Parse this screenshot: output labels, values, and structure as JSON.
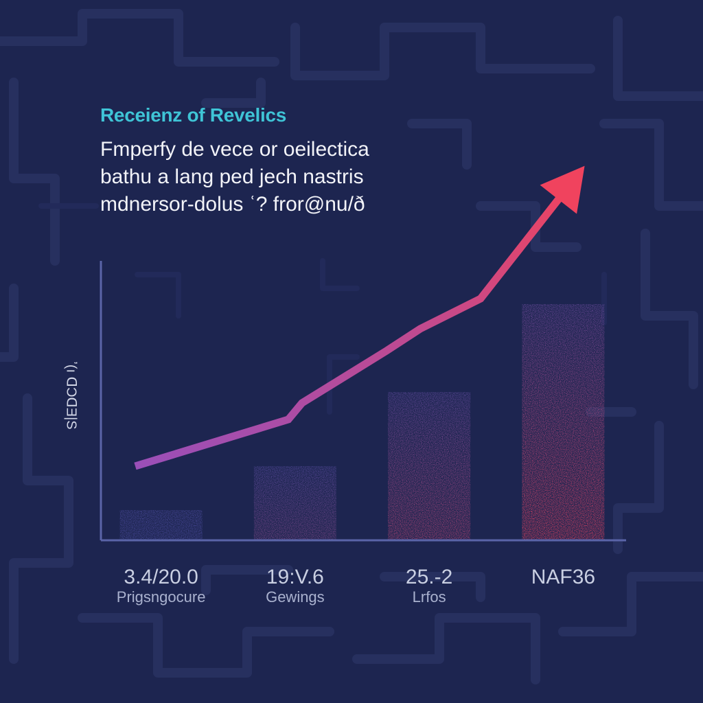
{
  "chart_data": {
    "type": "bar",
    "title": "Receienz of Revelics",
    "subtitle_lines": [
      "Fmperfy de vece or oeilectica",
      "bathu a lang ped jech nastris",
      "mdnersor-dolus ʿ? fror@nu/ð"
    ],
    "ylabel": "ʼ(ı ᗡƆᗡƎ|S",
    "categories": [
      {
        "value_label": "3.4/20.0",
        "label": "Prigsngocure"
      },
      {
        "value_label": "19:V.6",
        "label": "Gewings"
      },
      {
        "value_label": "25.-2",
        "label": "Lrfos"
      },
      {
        "value_label": "NAF36",
        "label": ""
      }
    ],
    "values": [
      11,
      27,
      54,
      86
    ],
    "trend_line": [
      27,
      44,
      50,
      69,
      77,
      77,
      88,
      132
    ],
    "ylim": [
      0,
      100
    ],
    "grid": false,
    "legend": "none",
    "colors": {
      "background": "#1d2550",
      "pattern": "#2a3366",
      "axis": "#5a64a8",
      "title": "#3fc4d6",
      "bar_bottom": "#4a4a9c",
      "bar_top_high": "#f0435e",
      "trend_start": "#9a4fb8",
      "trend_end": "#f0435e"
    }
  }
}
